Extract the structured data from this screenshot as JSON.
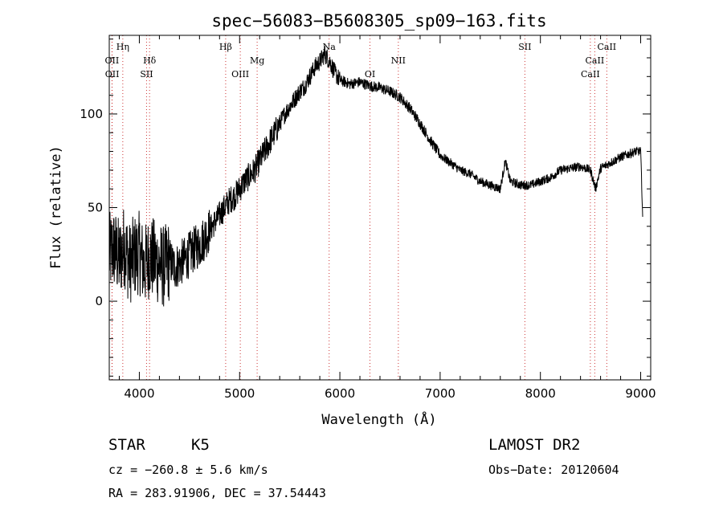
{
  "chart_data": {
    "type": "line",
    "title": "spec−56083−B5608305_sp09−163.fits",
    "xlabel": "Wavelength (Å)",
    "ylabel": "Flux (relative)",
    "xlim": [
      3700,
      9100
    ],
    "ylim": [
      -42,
      142
    ],
    "xticks": [
      4000,
      5000,
      6000,
      7000,
      8000,
      9000
    ],
    "yticks": [
      0,
      50,
      100
    ],
    "grid": false,
    "series": [
      {
        "line_color": "#000000",
        "x": [
          3700,
          3750,
          3800,
          3850,
          3900,
          3950,
          4000,
          4050,
          4100,
          4150,
          4200,
          4250,
          4300,
          4350,
          4400,
          4450,
          4500,
          4550,
          4600,
          4650,
          4700,
          4750,
          4800,
          4850,
          4900,
          4950,
          5000,
          5050,
          5100,
          5150,
          5200,
          5250,
          5300,
          5350,
          5400,
          5450,
          5500,
          5550,
          5600,
          5650,
          5700,
          5750,
          5800,
          5850,
          5900,
          5950,
          6000,
          6100,
          6200,
          6300,
          6400,
          6500,
          6600,
          6700,
          6800,
          6900,
          7000,
          7100,
          7200,
          7300,
          7400,
          7500,
          7600,
          7650,
          7700,
          7800,
          7900,
          8000,
          8100,
          8200,
          8300,
          8400,
          8500,
          8550,
          8600,
          8700,
          8800,
          8900,
          8950,
          9000,
          9020
        ],
        "y": [
          25,
          28,
          22,
          30,
          20,
          24,
          26,
          18,
          24,
          22,
          20,
          18,
          22,
          18,
          20,
          22,
          25,
          28,
          30,
          34,
          38,
          42,
          46,
          50,
          54,
          56,
          60,
          64,
          67,
          70,
          75,
          80,
          85,
          90,
          95,
          100,
          104,
          108,
          112,
          115,
          120,
          125,
          128,
          132,
          128,
          122,
          118,
          116,
          117,
          115,
          114,
          112,
          109,
          103,
          95,
          86,
          78,
          74,
          70,
          68,
          64,
          62,
          60,
          75,
          64,
          62,
          62,
          64,
          66,
          70,
          71,
          72,
          70,
          60,
          71,
          74,
          77,
          79,
          80,
          80,
          45
        ]
      }
    ],
    "line_markers": [
      {
        "name": "Hη",
        "x": 3835,
        "row": 1
      },
      {
        "name": "OII",
        "x": 3727,
        "row": 2
      },
      {
        "name": "OII",
        "x": 3729,
        "row": 3
      },
      {
        "name": "Hδ",
        "x": 4102,
        "row": 2
      },
      {
        "name": "SII",
        "x": 4072,
        "row": 3
      },
      {
        "name": "Hβ",
        "x": 4861,
        "row": 1
      },
      {
        "name": "Mg",
        "x": 5175,
        "row": 2
      },
      {
        "name": "OIII",
        "x": 5007,
        "row": 3
      },
      {
        "name": "Na",
        "x": 5893,
        "row": 1
      },
      {
        "name": "NII",
        "x": 6583,
        "row": 2
      },
      {
        "name": "OI",
        "x": 6300,
        "row": 3
      },
      {
        "name": "SII",
        "x": 7845,
        "row": 1
      },
      {
        "name": "CaII",
        "x": 8662,
        "row": 1
      },
      {
        "name": "CaII",
        "x": 8542,
        "row": 2
      },
      {
        "name": "CaII",
        "x": 8498,
        "row": 3
      }
    ],
    "marker_color": "#cc3333"
  },
  "info": {
    "class": "STAR",
    "subclass": "K5",
    "survey": "LAMOST DR2",
    "cz": "cz = −260.8 ± 5.6 km/s",
    "obs_date": "Obs−Date: 20120604",
    "coords": "RA = 283.91906, DEC =  37.54443"
  }
}
